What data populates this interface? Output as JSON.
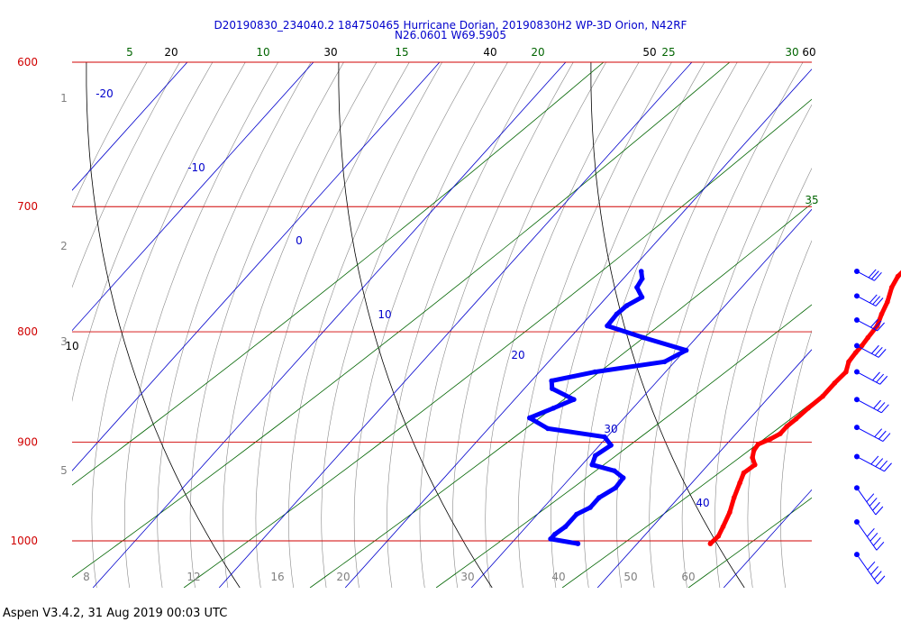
{
  "title_line1": "D20190830_234040.2 184750465 Hurricane Dorian, 20190830H2 WP-3D Orion, N42RF",
  "title_line2": "N26.0601 W69.5905",
  "footer": "Aspen V3.4.2, 31 Aug 2019  00:03 UTC",
  "colors": {
    "isobar": "#d00000",
    "isotherm": "#0000cc",
    "dry_adiabat": "#000000",
    "moist_adiabat": "#888888",
    "mixing_ratio": "#006400",
    "temperature_trace": "#ff0000",
    "dewpoint_trace": "#0000ff",
    "title": "#0000cc"
  },
  "chart_data": {
    "type": "skew-T",
    "pressure_levels": [
      {
        "label": "600",
        "p": 600
      },
      {
        "label": "700",
        "p": 700
      },
      {
        "label": "800",
        "p": 800
      },
      {
        "label": "900",
        "p": 900
      },
      {
        "label": "1000",
        "p": 1000
      }
    ],
    "isotherm_labels": [
      "-20",
      "-10",
      "0",
      "10",
      "20",
      "30",
      "40"
    ],
    "dry_adiabat_top_labels": [
      "20",
      "30",
      "40",
      "50",
      "60"
    ],
    "dry_adiabat_side_label": "10",
    "mixing_ratio_top_labels": [
      "5",
      "10",
      "15",
      "20",
      "25",
      "30",
      "35"
    ],
    "moist_adiabat_bottom_labels": [
      "8",
      "12",
      "16",
      "20",
      "30",
      "40",
      "50",
      "60"
    ],
    "left_scale_labels": [
      "1",
      "2",
      "3",
      "5"
    ],
    "temperature_profile": [
      {
        "p": 1003,
        "t": 25.8
      },
      {
        "p": 995,
        "t": 25.9
      },
      {
        "p": 985,
        "t": 25.6
      },
      {
        "p": 970,
        "t": 25.1
      },
      {
        "p": 955,
        "t": 24.4
      },
      {
        "p": 940,
        "t": 23.8
      },
      {
        "p": 930,
        "t": 23.4
      },
      {
        "p": 922,
        "t": 23.7
      },
      {
        "p": 915,
        "t": 23.0
      },
      {
        "p": 908,
        "t": 22.6
      },
      {
        "p": 902,
        "t": 22.5
      },
      {
        "p": 897,
        "t": 23.1
      },
      {
        "p": 892,
        "t": 23.5
      },
      {
        "p": 885,
        "t": 23.5
      },
      {
        "p": 878,
        "t": 23.7
      },
      {
        "p": 868,
        "t": 23.9
      },
      {
        "p": 857,
        "t": 24.2
      },
      {
        "p": 845,
        "t": 24.2
      },
      {
        "p": 835,
        "t": 24.3
      },
      {
        "p": 826,
        "t": 23.8
      },
      {
        "p": 818,
        "t": 23.7
      },
      {
        "p": 812,
        "t": 23.7
      },
      {
        "p": 805,
        "t": 23.6
      },
      {
        "p": 795,
        "t": 23.5
      },
      {
        "p": 785,
        "t": 23.0
      },
      {
        "p": 775,
        "t": 22.6
      },
      {
        "p": 763,
        "t": 21.9
      },
      {
        "p": 754,
        "t": 21.6
      },
      {
        "p": 747,
        "t": 21.7
      }
    ],
    "dewpoint_profile": [
      {
        "p": 1003,
        "t": 15.3
      },
      {
        "p": 998,
        "t": 12.8
      },
      {
        "p": 993,
        "t": 12.8
      },
      {
        "p": 985,
        "t": 13.1
      },
      {
        "p": 972,
        "t": 13.1
      },
      {
        "p": 965,
        "t": 13.7
      },
      {
        "p": 955,
        "t": 13.7
      },
      {
        "p": 945,
        "t": 14.3
      },
      {
        "p": 935,
        "t": 14.2
      },
      {
        "p": 928,
        "t": 13.0
      },
      {
        "p": 922,
        "t": 10.8
      },
      {
        "p": 913,
        "t": 10.4
      },
      {
        "p": 903,
        "t": 10.9
      },
      {
        "p": 895,
        "t": 9.8
      },
      {
        "p": 887,
        "t": 4.7
      },
      {
        "p": 877,
        "t": 2.5
      },
      {
        "p": 868,
        "t": 3.7
      },
      {
        "p": 860,
        "t": 4.7
      },
      {
        "p": 850,
        "t": 2.2
      },
      {
        "p": 843,
        "t": 1.6
      },
      {
        "p": 835,
        "t": 4.4
      },
      {
        "p": 826,
        "t": 9.2
      },
      {
        "p": 816,
        "t": 10.1
      },
      {
        "p": 805,
        "t": 5.8
      },
      {
        "p": 795,
        "t": 2.1
      },
      {
        "p": 785,
        "t": 2.0
      },
      {
        "p": 778,
        "t": 2.2
      },
      {
        "p": 771,
        "t": 2.8
      },
      {
        "p": 763,
        "t": 1.7
      },
      {
        "p": 756,
        "t": 1.5
      },
      {
        "p": 750,
        "t": 0.9
      }
    ],
    "wind_barb_pressures": [
      750,
      770,
      790,
      812,
      835,
      860,
      886,
      914,
      945,
      980,
      1003
    ]
  }
}
